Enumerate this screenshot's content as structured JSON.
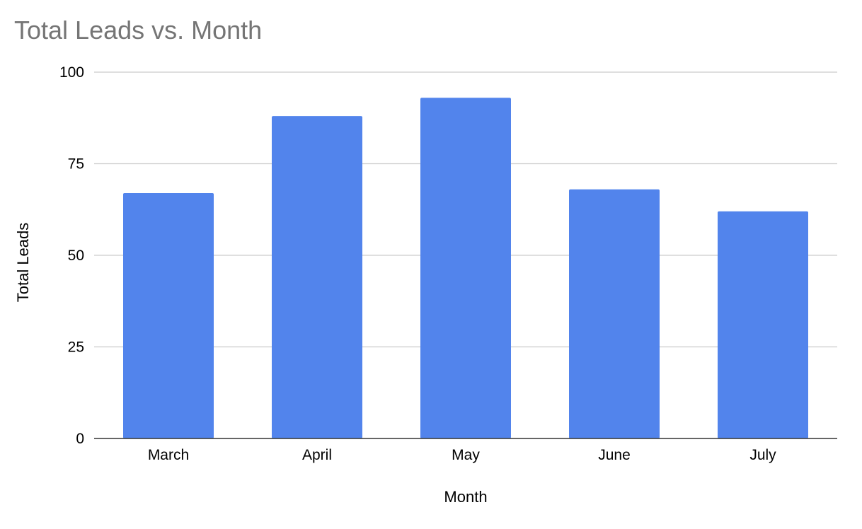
{
  "chart_data": {
    "type": "bar",
    "title": "Total Leads  vs. Month",
    "xlabel": "Month",
    "ylabel": "Total Leads",
    "categories": [
      "March",
      "April",
      "May",
      "June",
      "July"
    ],
    "values": [
      67,
      88,
      93,
      68,
      62
    ],
    "ylim": [
      0,
      100
    ],
    "yticks": [
      0,
      25,
      50,
      75,
      100
    ],
    "grid": true,
    "legend": "none",
    "bar_color": "#5284ec"
  }
}
